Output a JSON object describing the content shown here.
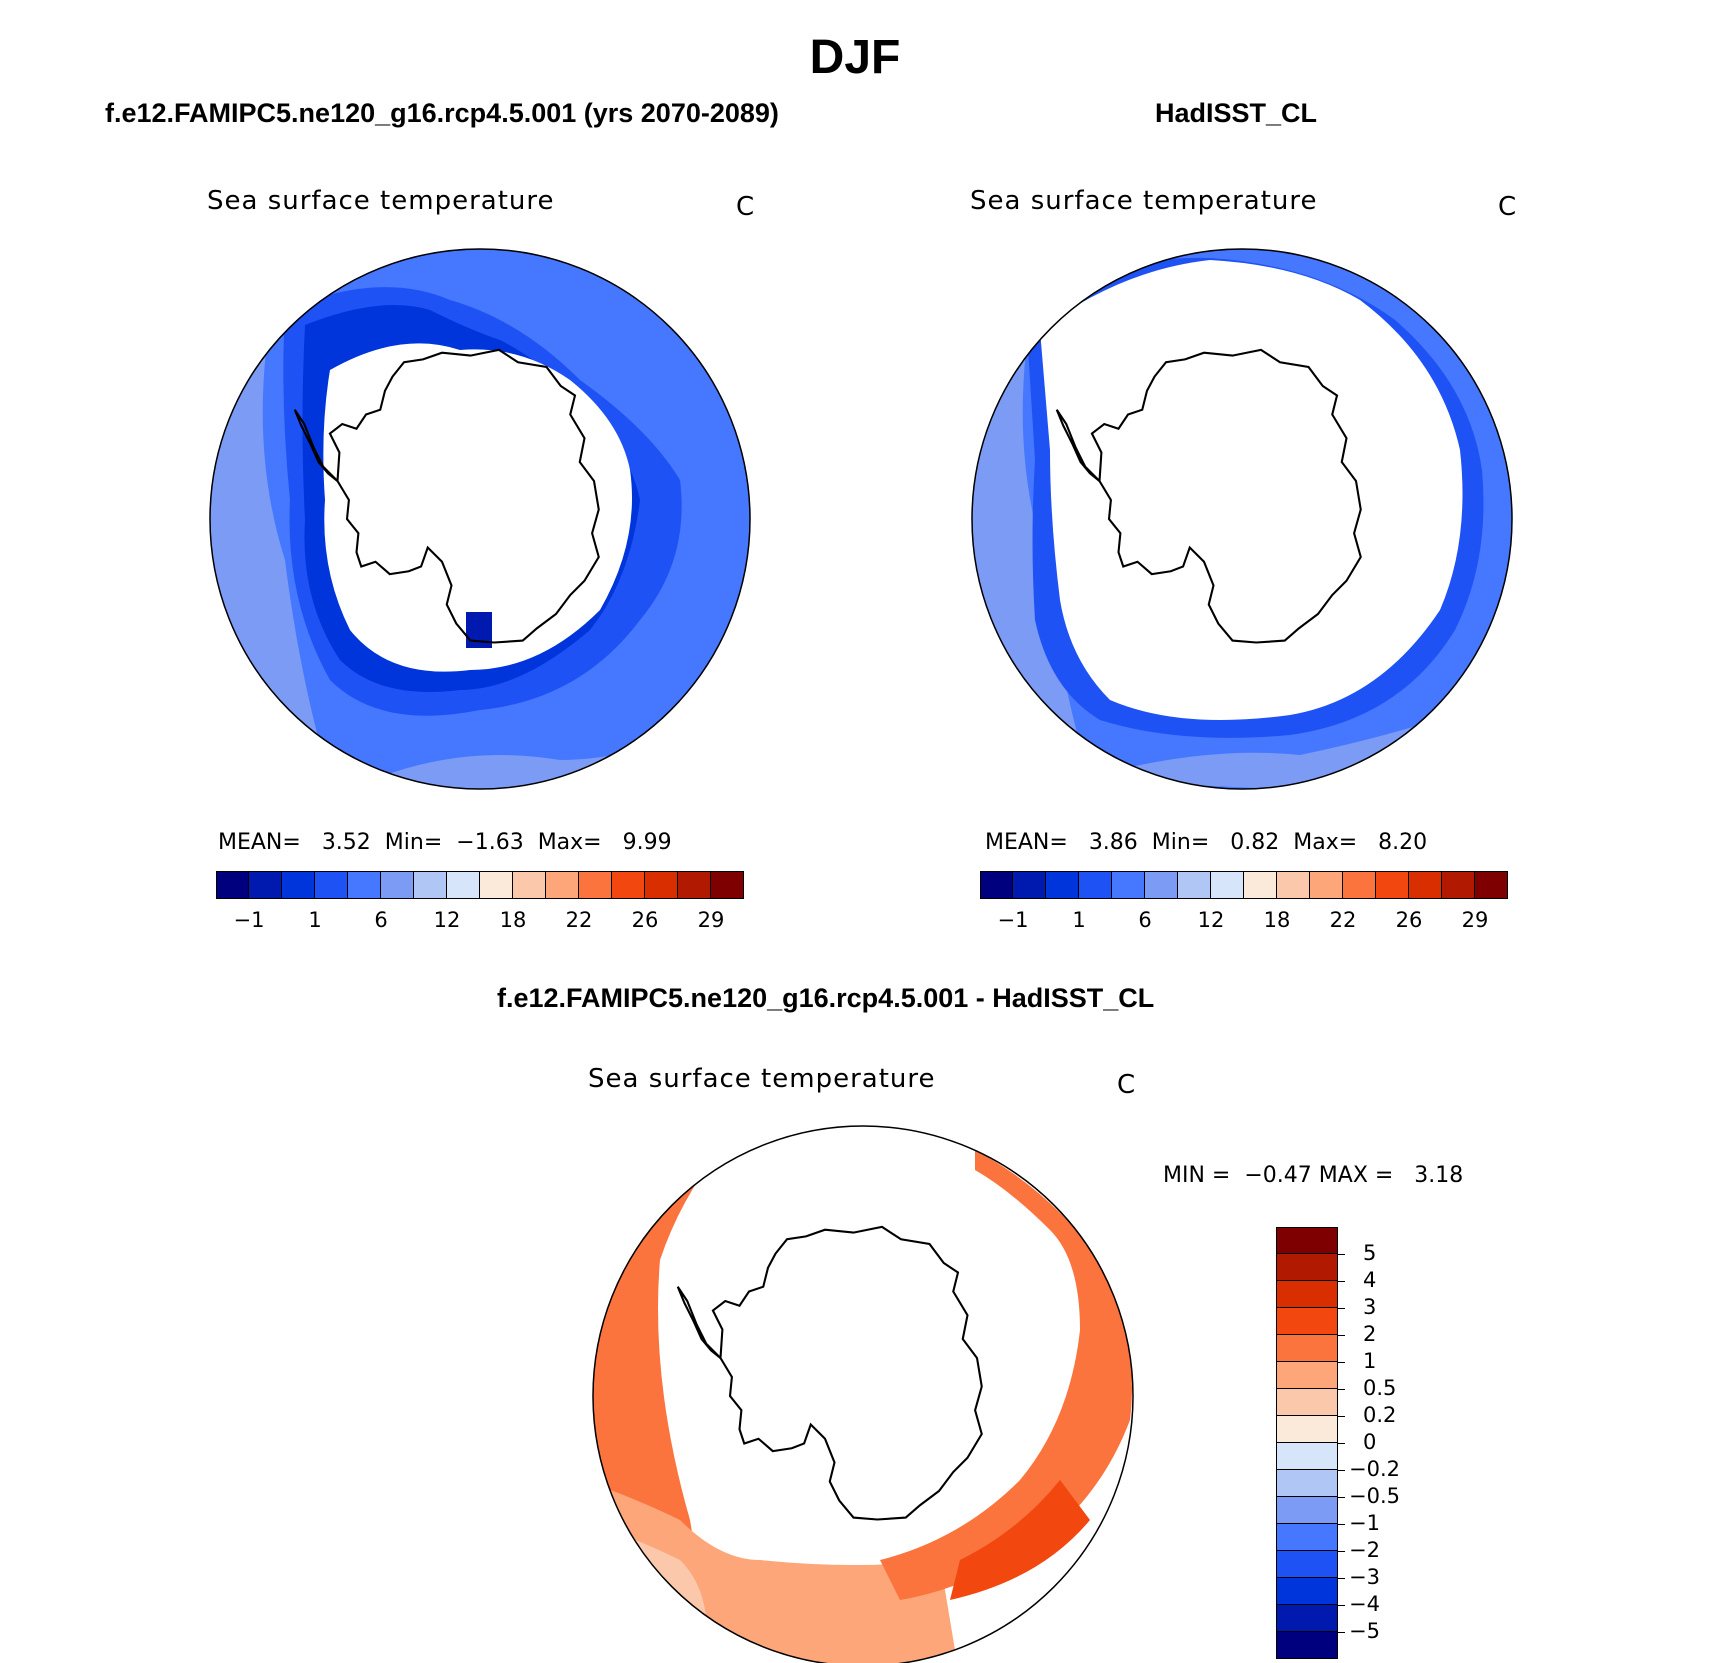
{
  "figure": {
    "title": "DJF"
  },
  "panels": [
    {
      "title": "f.e12.FAMIPC5.ne120_g16.rcp4.5.001 (yrs 2070-2089)",
      "variable": "Sea surface temperature",
      "units": "C",
      "stats": {
        "mean_label": "MEAN=",
        "mean": "3.52",
        "min_label": "Min=",
        "min": "−1.63",
        "max_label": "Max=",
        "max": "9.99"
      }
    },
    {
      "title": "HadISST_CL",
      "variable": "Sea surface temperature",
      "units": "C",
      "stats": {
        "mean_label": "MEAN=",
        "mean": "3.86",
        "min_label": "Min=",
        "min": "0.82",
        "max_label": "Max=",
        "max": "8.20"
      }
    },
    {
      "title": "f.e12.FAMIPC5.ne120_g16.rcp4.5.001 - HadISST_CL",
      "variable": "Sea surface temperature",
      "units": "C",
      "stats": {
        "min_label": "MIN =",
        "min": "−0.47",
        "max_label": "MAX =",
        "max": "3.18"
      }
    }
  ],
  "colorbar_horizontal": {
    "colors": [
      "#00007f",
      "#0019af",
      "#0035dc",
      "#1f52f5",
      "#4677ff",
      "#7b9bf5",
      "#b0c6f5",
      "#d6e5fa",
      "#fbe9d9",
      "#fcc8ac",
      "#fca67a",
      "#fb733d",
      "#f34710",
      "#d92e00",
      "#b21a00",
      "#7f0000"
    ],
    "ticks": [
      "−1",
      "1",
      "6",
      "12",
      "18",
      "22",
      "26",
      "29"
    ]
  },
  "colorbar_vertical": {
    "colors": [
      "#7f0000",
      "#b21a00",
      "#d92e00",
      "#f34710",
      "#fb733d",
      "#fca67a",
      "#fcc8ac",
      "#fbe9d9",
      "#d6e5fa",
      "#b0c6f5",
      "#7b9bf5",
      "#4677ff",
      "#1f52f5",
      "#0035dc",
      "#0019af",
      "#00007f"
    ],
    "labels": [
      "5",
      "4",
      "3",
      "2",
      "1",
      "0.5",
      "0.2",
      "0",
      "−0.2",
      "−0.5",
      "−1",
      "−2",
      "−3",
      "−4",
      "−5"
    ]
  },
  "map_colors": {
    "ocean_cold_dark": "#0035dc",
    "ocean_cold_mid": "#1f52f5",
    "ocean_cold": "#4677ff",
    "ocean_cool": "#7b9bf5",
    "ocean_deep": "#0019af",
    "diff_warm": "#fb733d",
    "diff_hot": "#f34710",
    "diff_mild": "#fca67a",
    "diff_light": "#fcc8ac",
    "diff_cool": "#d6e5fa",
    "land_ice": "#ffffff"
  }
}
